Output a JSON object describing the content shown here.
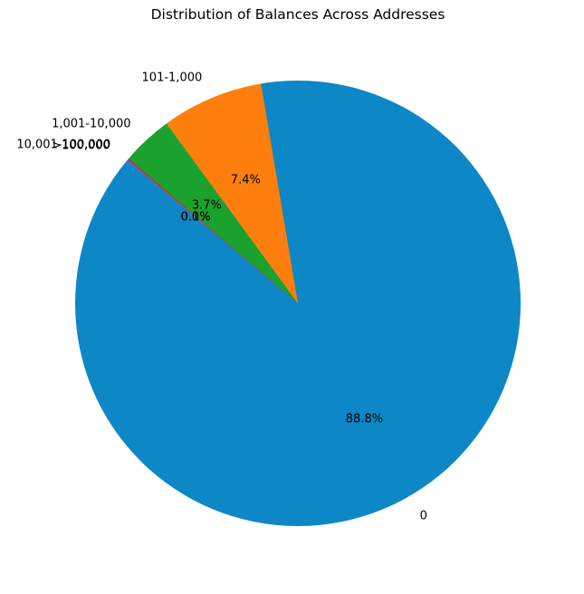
{
  "chart_data": {
    "type": "pie",
    "title": "Distribution of Balances Across Addresses",
    "labels": [
      "0",
      "101-1,000",
      "1,001-10,000",
      "10,001-100,000",
      ">100,000"
    ],
    "values_percent": [
      88.8,
      7.4,
      3.7,
      0.1,
      0.0
    ],
    "autopct_labels": [
      "88.8%",
      "7.4%",
      "3.7%",
      "0.1%",
      "0.0%"
    ],
    "colors": [
      "#0d87c5",
      "#ff7f0e",
      "#1ba12e",
      "#d62728",
      "#9467bd"
    ],
    "start_angle": 140,
    "direction": "counterclockwise",
    "legend": "none",
    "background": "#ffffff",
    "text_color": "#000000",
    "notes": "labels at 1.1r, percent labels at 0.6r; tiny slice labels overlap each other"
  }
}
